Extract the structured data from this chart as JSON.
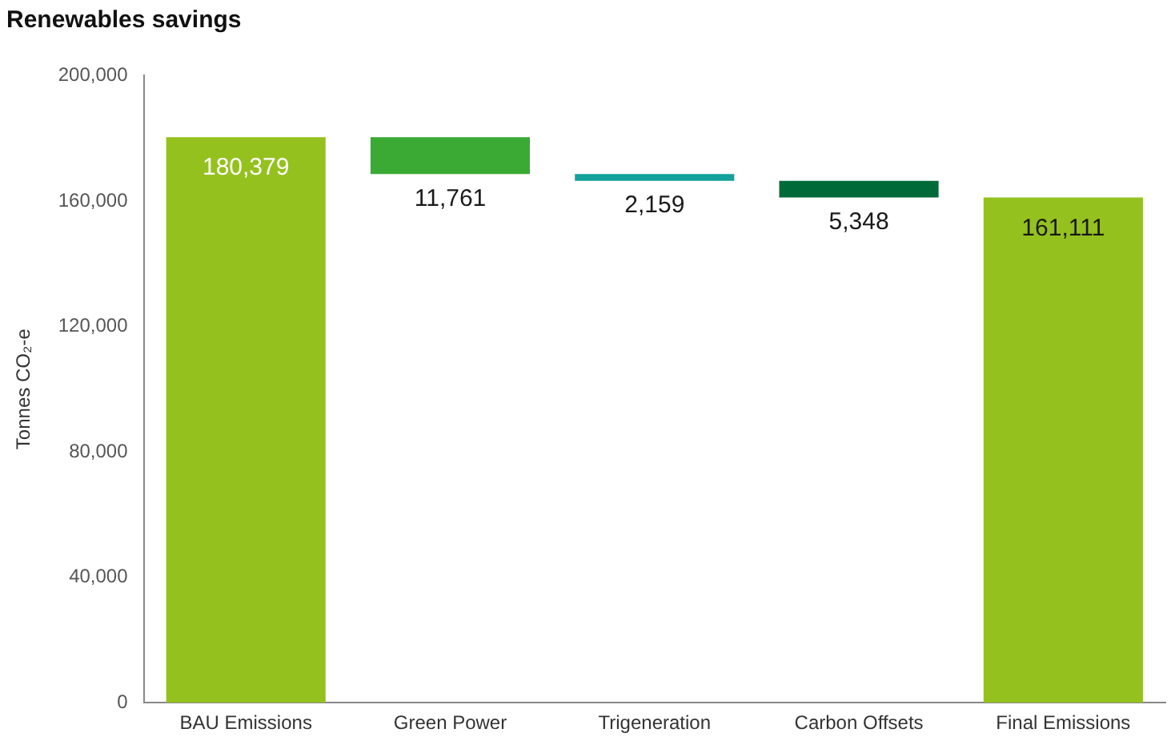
{
  "chart_data": {
    "type": "bar",
    "title": "Renewables savings",
    "ylabel": "Tonnes CO₂-e",
    "categories": [
      "BAU Emissions",
      "Green Power",
      "Trigeneration",
      "Carbon Offsets",
      "Final Emissions"
    ],
    "values": [
      180379,
      11761,
      2159,
      5348,
      161111
    ],
    "base": [
      0,
      168618,
      166459,
      161111,
      0
    ],
    "colors": [
      "#95c11f",
      "#3aaa35",
      "#13a19b",
      "#006b38",
      "#95c11f"
    ],
    "ylim": [
      0,
      200000
    ],
    "yticks": [
      {
        "value": 0,
        "label": "0"
      },
      {
        "value": 40000,
        "label": "40,000"
      },
      {
        "value": 80000,
        "label": "80,000"
      },
      {
        "value": 120000,
        "label": "120,000"
      },
      {
        "value": 160000,
        "label": "160,000"
      },
      {
        "value": 200000,
        "label": "200,000"
      }
    ],
    "value_labels": [
      "180,379",
      "11,761",
      "2,159",
      "5,348",
      "161,111"
    ],
    "grid": false,
    "legend": false
  }
}
